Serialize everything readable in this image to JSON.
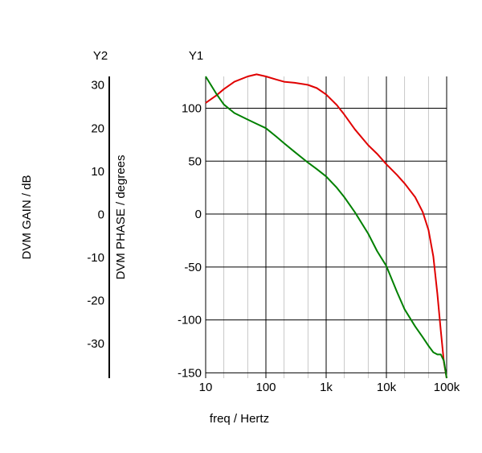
{
  "chart_data": {
    "type": "line",
    "x_scale": "log",
    "xlim": [
      10,
      100000
    ],
    "x_ticks": [
      {
        "value": 10,
        "label": "10"
      },
      {
        "value": 100,
        "label": "100"
      },
      {
        "value": 1000,
        "label": "1k"
      },
      {
        "value": 10000,
        "label": "10k"
      },
      {
        "value": 100000,
        "label": "100k"
      }
    ],
    "xlabel": "freq / Hertz",
    "y1": {
      "title": "Y1",
      "label": "DVM PHASE / degrees",
      "ylim": [
        -155,
        130
      ],
      "ticks": [
        100,
        50,
        0,
        -50,
        -100,
        -150
      ],
      "tick_labels": [
        "100",
        "50",
        "0",
        "-50",
        "-100",
        "-150"
      ]
    },
    "y2": {
      "title": "Y2",
      "label": "DVM GAIN / dB",
      "ylim": [
        -38,
        32
      ],
      "ticks": [
        30,
        20,
        10,
        0,
        -10,
        -20,
        -30
      ],
      "tick_labels": [
        "30",
        "20",
        "10",
        "0",
        "-10",
        "-20",
        "-30"
      ]
    },
    "grid": true,
    "series": [
      {
        "color": "#e00000",
        "axis": "y1",
        "points": [
          [
            10,
            105
          ],
          [
            15,
            112
          ],
          [
            20,
            118
          ],
          [
            30,
            125
          ],
          [
            50,
            130
          ],
          [
            70,
            132
          ],
          [
            100,
            130
          ],
          [
            150,
            127
          ],
          [
            200,
            125
          ],
          [
            300,
            124
          ],
          [
            500,
            122
          ],
          [
            700,
            119
          ],
          [
            1000,
            113
          ],
          [
            1500,
            103
          ],
          [
            2000,
            94
          ],
          [
            3000,
            80
          ],
          [
            5000,
            65
          ],
          [
            7000,
            57
          ],
          [
            10000,
            47
          ],
          [
            15000,
            37
          ],
          [
            20000,
            29
          ],
          [
            30000,
            16
          ],
          [
            40000,
            2
          ],
          [
            50000,
            -15
          ],
          [
            60000,
            -40
          ],
          [
            70000,
            -75
          ],
          [
            80000,
            -110
          ],
          [
            90000,
            -140
          ],
          [
            100000,
            -155
          ]
        ]
      },
      {
        "color": "#008000",
        "axis": "y2",
        "points": [
          [
            10,
            32
          ],
          [
            15,
            28
          ],
          [
            20,
            25.5
          ],
          [
            30,
            23.5
          ],
          [
            50,
            22
          ],
          [
            70,
            21
          ],
          [
            100,
            20
          ],
          [
            150,
            18
          ],
          [
            200,
            16.5
          ],
          [
            300,
            14.5
          ],
          [
            500,
            12
          ],
          [
            700,
            10.5
          ],
          [
            1000,
            8.8
          ],
          [
            1500,
            6.2
          ],
          [
            2000,
            4
          ],
          [
            3000,
            0.5
          ],
          [
            5000,
            -4.5
          ],
          [
            7000,
            -8.5
          ],
          [
            10000,
            -12
          ],
          [
            15000,
            -18
          ],
          [
            20000,
            -22
          ],
          [
            30000,
            -26
          ],
          [
            40000,
            -28.5
          ],
          [
            50000,
            -30.5
          ],
          [
            60000,
            -32
          ],
          [
            70000,
            -32.5
          ],
          [
            80000,
            -32.5
          ],
          [
            90000,
            -34
          ],
          [
            100000,
            -38
          ]
        ]
      }
    ]
  }
}
